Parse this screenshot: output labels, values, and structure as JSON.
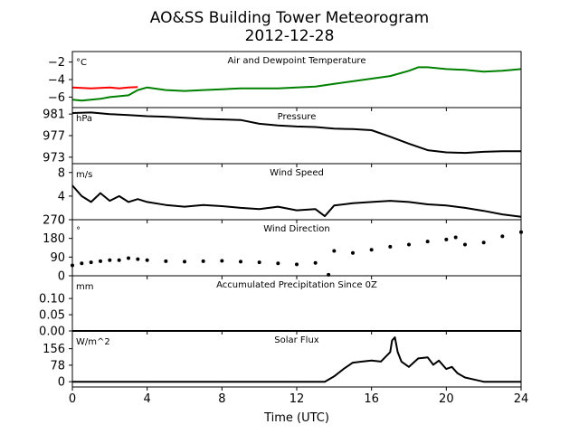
{
  "title": "AO&SS Building Tower Meteorogram",
  "subtitle": "2012-12-28",
  "xlabel": "Time (UTC)",
  "colors": {
    "temperature": "#ff0000",
    "dewpoint": "#008000",
    "line": "#000000"
  },
  "chart_data": [
    {
      "type": "line",
      "title": "Air and Dewpoint Temperature",
      "unit": "°C",
      "x_range": [
        0,
        24
      ],
      "ylim": [
        -7.2,
        -0.8
      ],
      "yticks": [
        -2,
        -4,
        -6
      ],
      "ytick_labels": [
        "−2",
        "−4",
        "−6"
      ],
      "series": [
        {
          "x": [
            0,
            0.5,
            1,
            1.5,
            2,
            2.5,
            3,
            3.5
          ],
          "values": [
            -4.9,
            -4.95,
            -5.0,
            -4.95,
            -4.9,
            -5.0,
            -4.9,
            -4.85
          ]
        },
        {
          "x": [
            0,
            0.5,
            1,
            1.5,
            2,
            2.5,
            3,
            3.5,
            4,
            5,
            6,
            7,
            8,
            9,
            10,
            11,
            12,
            13,
            14,
            15,
            16,
            17,
            18,
            18.5,
            19,
            20,
            21,
            22,
            23,
            24
          ],
          "values": [
            -6.3,
            -6.4,
            -6.3,
            -6.2,
            -6.0,
            -5.9,
            -5.8,
            -5.2,
            -4.9,
            -5.2,
            -5.3,
            -5.2,
            -5.1,
            -5.0,
            -5.0,
            -5.0,
            -4.9,
            -4.8,
            -4.5,
            -4.2,
            -3.9,
            -3.6,
            -3.0,
            -2.6,
            -2.6,
            -2.8,
            -2.9,
            -3.1,
            -3.0,
            -2.8
          ]
        }
      ]
    },
    {
      "type": "line",
      "title": "Pressure",
      "unit": "hPa",
      "x_range": [
        0,
        24
      ],
      "ylim": [
        971.8,
        982.2
      ],
      "yticks": [
        981,
        977,
        973
      ],
      "ytick_labels": [
        "981",
        "977",
        "973"
      ],
      "series": [
        {
          "x": [
            0,
            1,
            2,
            3,
            4,
            5,
            6,
            7,
            8,
            9,
            10,
            11,
            12,
            13,
            14,
            15,
            16,
            17,
            18,
            19,
            20,
            21,
            22,
            23,
            24
          ],
          "values": [
            981.2,
            981.3,
            981.0,
            980.8,
            980.6,
            980.5,
            980.3,
            980.1,
            980.0,
            979.9,
            979.2,
            978.9,
            978.7,
            978.6,
            978.3,
            978.2,
            978.0,
            976.8,
            975.5,
            974.3,
            973.9,
            973.8,
            974.0,
            974.1,
            974.1
          ]
        }
      ]
    },
    {
      "type": "line",
      "title": "Wind Speed",
      "unit": "m/s",
      "x_range": [
        0,
        24
      ],
      "ylim": [
        0,
        9.5
      ],
      "yticks": [
        8,
        4,
        0
      ],
      "ytick_labels": [
        "8",
        "4",
        "0"
      ],
      "series": [
        {
          "x": [
            0,
            0.5,
            1,
            1.5,
            2,
            2.5,
            3,
            3.5,
            4,
            5,
            6,
            7,
            8,
            9,
            10,
            11,
            12,
            13,
            13.5,
            14,
            15,
            16,
            17,
            18,
            19,
            20,
            21,
            22,
            23,
            24
          ],
          "values": [
            5.8,
            4.0,
            3.0,
            4.5,
            3.2,
            4.0,
            3.0,
            3.5,
            3.0,
            2.5,
            2.2,
            2.5,
            2.3,
            2.0,
            1.8,
            2.2,
            1.6,
            1.8,
            0.6,
            2.4,
            2.8,
            3.0,
            3.2,
            3.0,
            2.6,
            2.4,
            2.0,
            1.5,
            0.9,
            0.5
          ]
        }
      ]
    },
    {
      "type": "scatter",
      "title": "Wind Direction",
      "unit": "°",
      "x_range": [
        0,
        24
      ],
      "ylim": [
        0,
        270
      ],
      "yticks": [
        270,
        180,
        90,
        0
      ],
      "ytick_labels": [
        "270",
        "180",
        "90",
        "0"
      ],
      "series": [
        {
          "x": [
            0,
            0.5,
            1,
            1.5,
            2,
            2.5,
            3,
            3.5,
            4,
            5,
            6,
            7,
            8,
            9,
            10,
            11,
            12,
            13,
            13.7,
            14,
            15,
            16,
            17,
            18,
            19,
            20,
            20.5,
            21,
            22,
            23,
            24
          ],
          "values": [
            50,
            60,
            65,
            70,
            75,
            75,
            85,
            80,
            75,
            70,
            68,
            70,
            72,
            68,
            65,
            60,
            55,
            62,
            5,
            120,
            110,
            125,
            140,
            150,
            165,
            175,
            185,
            150,
            160,
            190,
            210
          ]
        }
      ]
    },
    {
      "type": "line",
      "title": "Accumulated Precipitation Since 0Z",
      "unit": "mm",
      "x_range": [
        0,
        24
      ],
      "ylim": [
        0,
        0.17
      ],
      "yticks": [
        0.1,
        0.05,
        0.0
      ],
      "ytick_labels": [
        "0.10",
        "0.05",
        "0.00"
      ],
      "series": [
        {
          "x": [
            0,
            24
          ],
          "values": [
            0,
            0
          ]
        }
      ]
    },
    {
      "type": "line",
      "title": "Solar Flux",
      "unit": "W/m^2",
      "x_range": [
        0,
        24
      ],
      "ylim": [
        -25,
        240
      ],
      "yticks": [
        156,
        78,
        0
      ],
      "ytick_labels": [
        "156",
        "78",
        "0"
      ],
      "series": [
        {
          "x": [
            0,
            13.5,
            14,
            14.5,
            15,
            15.5,
            16,
            16.5,
            17,
            17.1,
            17.25,
            17.4,
            17.6,
            18,
            18.5,
            19,
            19.3,
            19.6,
            20,
            20.3,
            20.6,
            21,
            21.5,
            22,
            24
          ],
          "values": [
            0,
            0,
            25,
            60,
            90,
            95,
            100,
            95,
            140,
            195,
            210,
            140,
            95,
            70,
            110,
            115,
            80,
            100,
            60,
            70,
            40,
            20,
            10,
            0,
            0
          ]
        }
      ]
    }
  ],
  "xaxis": {
    "ticks": [
      0,
      4,
      8,
      12,
      16,
      20,
      24
    ],
    "tick_labels": [
      "0",
      "4",
      "8",
      "12",
      "16",
      "20",
      "24"
    ]
  }
}
